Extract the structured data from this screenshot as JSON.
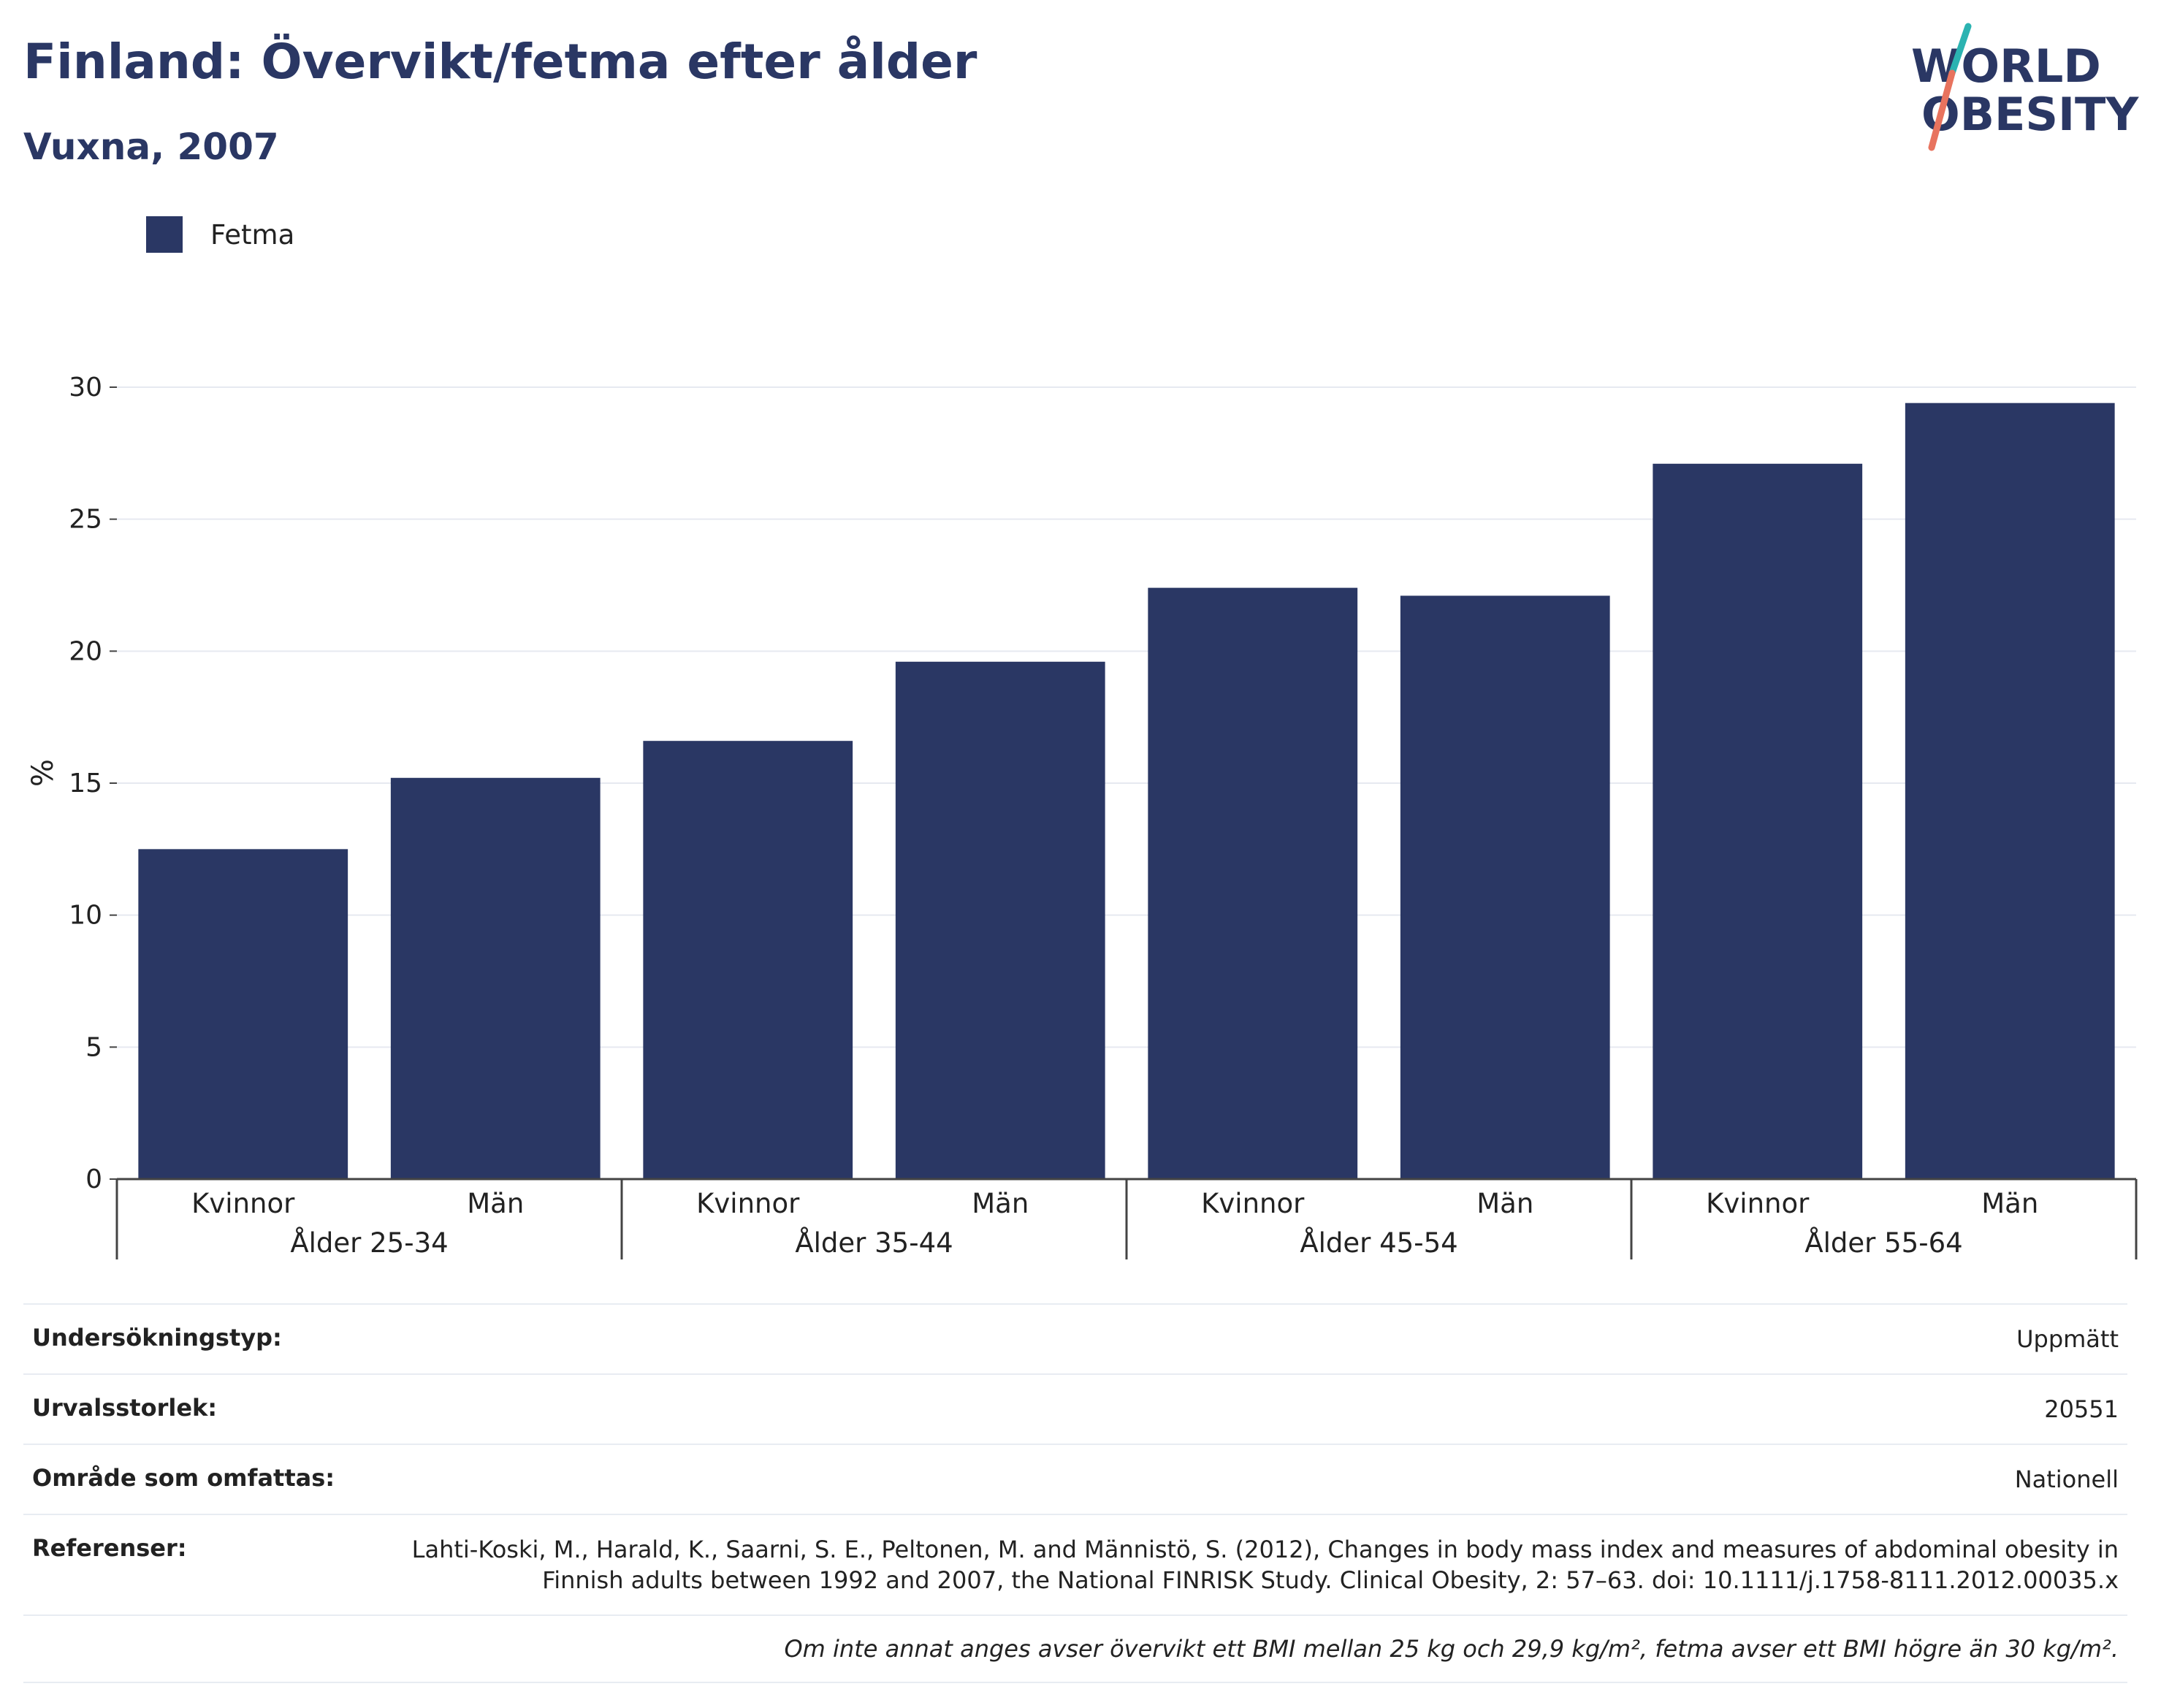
{
  "header": {
    "title": "Finland: Övervikt/fetma efter ålder",
    "subtitle": "Vuxna, 2007"
  },
  "logo": {
    "line1": "WORLD",
    "line2": "OBESITY"
  },
  "colors": {
    "bar": "#2a3764",
    "text": "#2a3764",
    "grid": "#e6e9f0",
    "logo_teal": "#2bb3b1",
    "logo_coral": "#e8735e"
  },
  "legend": {
    "label": "Fetma"
  },
  "chart_data": {
    "type": "bar",
    "ylabel": "%",
    "ylim": [
      0,
      30
    ],
    "yticks": [
      "0",
      "5",
      "10",
      "15",
      "20",
      "25",
      "30"
    ],
    "grid": true,
    "groups": [
      "Ålder 25-34",
      "Ålder 35-44",
      "Ålder 45-54",
      "Ålder 55-64"
    ],
    "categories": [
      "Kvinnor",
      "Män",
      "Kvinnor",
      "Män",
      "Kvinnor",
      "Män",
      "Kvinnor",
      "Män"
    ],
    "series": [
      {
        "name": "Fetma",
        "values": [
          12.5,
          15.2,
          16.6,
          19.6,
          22.4,
          22.1,
          27.1,
          29.4
        ]
      }
    ]
  },
  "info": {
    "rows": [
      {
        "key": "Undersökningstyp:",
        "value": "Uppmätt"
      },
      {
        "key": "Urvalsstorlek:",
        "value": "20551"
      },
      {
        "key": "Område som omfattas:",
        "value": "Nationell"
      },
      {
        "key": "Referenser:",
        "value": "Lahti-Koski, M., Harald, K., Saarni, S. E., Peltonen, M. and Männistö, S. (2012), Changes in body mass index and measures of abdominal obesity in Finnish adults between 1992 and 2007, the National FINRISK Study. Clinical Obesity, 2: 57–63. doi: 10.1111/j.1758-8111.2012.00035.x"
      }
    ],
    "note": "Om inte annat anges avser övervikt ett BMI mellan 25 kg och 29,9 kg/m², fetma avser ett BMI högre än 30 kg/m²."
  }
}
